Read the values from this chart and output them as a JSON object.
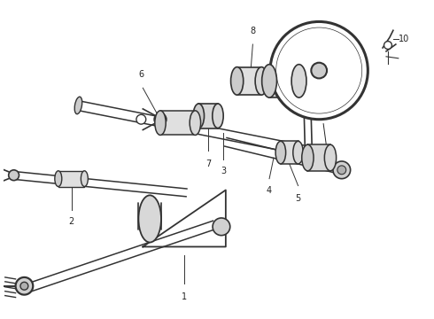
{
  "bg_color": "#ffffff",
  "line_color": "#333333",
  "label_color": "#222222",
  "fig_width": 4.9,
  "fig_height": 3.6,
  "dpi": 100
}
